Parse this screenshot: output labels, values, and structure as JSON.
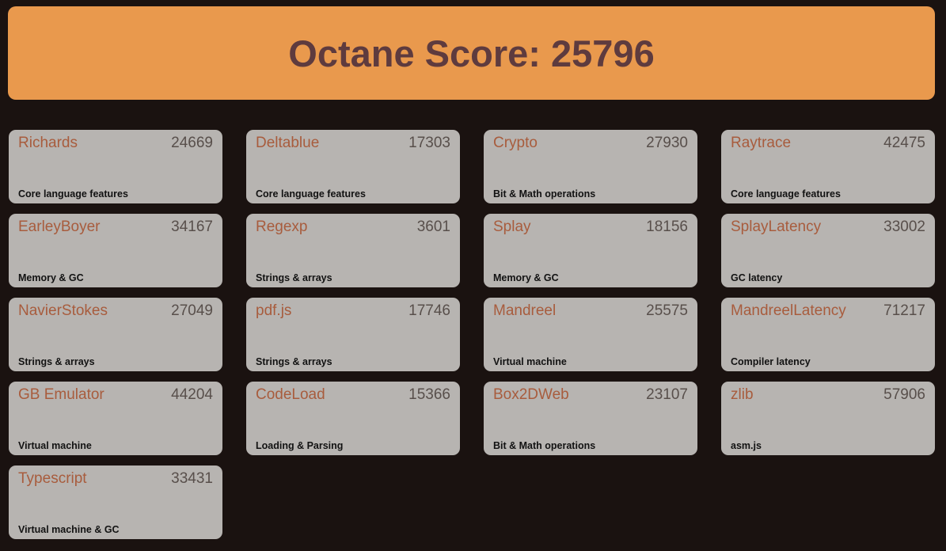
{
  "header": {
    "title": "Octane Score: 25796",
    "total_score": 25796
  },
  "benchmarks": [
    {
      "name": "Richards",
      "score": "24669",
      "category": "Core language features"
    },
    {
      "name": "Deltablue",
      "score": "17303",
      "category": "Core language features"
    },
    {
      "name": "Crypto",
      "score": "27930",
      "category": "Bit & Math operations"
    },
    {
      "name": "Raytrace",
      "score": "42475",
      "category": "Core language features"
    },
    {
      "name": "EarleyBoyer",
      "score": "34167",
      "category": "Memory & GC"
    },
    {
      "name": "Regexp",
      "score": "3601",
      "category": "Strings & arrays"
    },
    {
      "name": "Splay",
      "score": "18156",
      "category": "Memory & GC"
    },
    {
      "name": "SplayLatency",
      "score": "33002",
      "category": "GC latency"
    },
    {
      "name": "NavierStokes",
      "score": "27049",
      "category": "Strings & arrays"
    },
    {
      "name": "pdf.js",
      "score": "17746",
      "category": "Strings & arrays"
    },
    {
      "name": "Mandreel",
      "score": "25575",
      "category": "Virtual machine"
    },
    {
      "name": "MandreelLatency",
      "score": "71217",
      "category": "Compiler latency"
    },
    {
      "name": "GB Emulator",
      "score": "44204",
      "category": "Virtual machine"
    },
    {
      "name": "CodeLoad",
      "score": "15366",
      "category": "Loading & Parsing"
    },
    {
      "name": "Box2DWeb",
      "score": "23107",
      "category": "Bit & Math operations"
    },
    {
      "name": "zlib",
      "score": "57906",
      "category": "asm.js"
    },
    {
      "name": "Typescript",
      "score": "33431",
      "category": "Virtual machine & GC"
    }
  ],
  "colors": {
    "page_bg": "#1a1210",
    "banner_bg": "#e9994d",
    "banner_text": "#5e3b3e",
    "card_bg": "#b7b4b1",
    "name_text": "#a85c3d",
    "score_text": "#584f4b",
    "category_text": "#121212"
  }
}
